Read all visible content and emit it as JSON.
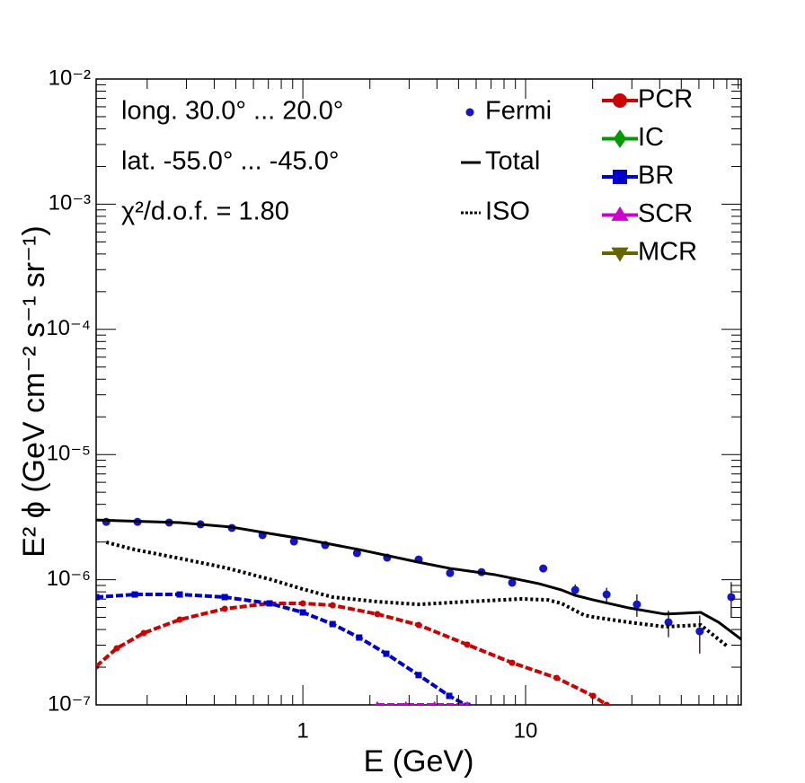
{
  "chart_data": {
    "type": "line",
    "log_x": true,
    "log_y": true,
    "xlabel": "E (GeV)",
    "ylabel": "E² ϕ (GeV cm⁻² s⁻¹ sr⁻¹)",
    "xlim": [
      0.118,
      92.9
    ],
    "ylim": [
      1e-07,
      0.01
    ],
    "xticks": [
      1,
      10
    ],
    "yticks": [
      {
        "value": 1e-07,
        "label": "10⁻⁷"
      },
      {
        "value": 1e-06,
        "label": "10⁻⁶"
      },
      {
        "value": 1e-05,
        "label": "10⁻⁵"
      },
      {
        "value": 0.0001,
        "label": "10⁻⁴"
      },
      {
        "value": 0.001,
        "label": "10⁻³"
      },
      {
        "value": 0.01,
        "label": "10⁻²"
      }
    ],
    "annotations": [
      "long. 30.0° ... 20.0°",
      "lat. -55.0° ... -45.0°",
      "χ²/d.o.f. = 1.80"
    ],
    "series": [
      {
        "name": "Fermi",
        "color": "#1414c8",
        "style": "points",
        "marker": "circle",
        "x": [
          0.131,
          0.181,
          0.251,
          0.347,
          0.48,
          0.659,
          0.912,
          1.26,
          1.75,
          2.39,
          3.31,
          4.58,
          6.34,
          8.7,
          12.0,
          16.7,
          23.1,
          31.6,
          43.8,
          60.5,
          83.8
        ],
        "values": [
          2.9e-06,
          2.9e-06,
          2.86e-06,
          2.77e-06,
          2.59e-06,
          2.27e-06,
          2.02e-06,
          1.89e-06,
          1.63e-06,
          1.5e-06,
          1.45e-06,
          1.13e-06,
          1.15e-06,
          9.46e-07,
          1.23e-06,
          8.28e-07,
          7.62e-07,
          6.35e-07,
          4.57e-07,
          3.87e-07,
          7.26e-07
        ],
        "errors": [
          5e-08,
          5e-08,
          5e-08,
          5e-08,
          5e-08,
          4e-08,
          4e-08,
          4e-08,
          3e-08,
          3e-08,
          4e-08,
          3e-08,
          4e-08,
          5e-08,
          8e-08,
          9e-08,
          1e-07,
          1.3e-07,
          1.1e-07,
          1.3e-07,
          2.3e-07
        ]
      },
      {
        "name": "Total",
        "color": "#000000",
        "style": "solid",
        "x": [
          0.118,
          0.28,
          0.48,
          0.709,
          1.0,
          1.79,
          3.31,
          4.58,
          7.22,
          11.5,
          14.5,
          16.7,
          20.1,
          29.1,
          42.2,
          61.1,
          73.6,
          92.9
        ],
        "values": [
          3e-06,
          2.86e-06,
          2.63e-06,
          2.34e-06,
          2.12e-06,
          1.74e-06,
          1.38e-06,
          1.23e-06,
          1.1e-06,
          9.29e-07,
          8.28e-07,
          7.5e-07,
          6.9e-07,
          5.95e-07,
          5.31e-07,
          5.48e-07,
          4.57e-07,
          3.34e-07
        ]
      },
      {
        "name": "ISO",
        "color": "#000000",
        "style": "dotted",
        "x": [
          0.131,
          0.176,
          0.28,
          0.446,
          0.709,
          1.0,
          1.36,
          2.16,
          3.31,
          5.47,
          9.55,
          12.6,
          14.5,
          18.3,
          20.1,
          29.1,
          42.2,
          61.1,
          80.8
        ],
        "values": [
          1.99e-06,
          1.74e-06,
          1.48e-06,
          1.25e-06,
          1.01e-06,
          8.41e-07,
          7.26e-07,
          6.68e-07,
          6.35e-07,
          6.68e-07,
          7.02e-07,
          6.9e-07,
          6.47e-07,
          5.21e-07,
          5.04e-07,
          4.57e-07,
          4.21e-07,
          4.35e-07,
          2.92e-07
        ]
      },
      {
        "name": "PCR",
        "color": "#cc0000",
        "style": "dashed",
        "marker": "circle",
        "x": [
          0.118,
          0.146,
          0.193,
          0.28,
          0.446,
          0.709,
          1.0,
          1.36,
          2.16,
          3.31,
          5.47,
          8.7,
          13.8,
          20.1,
          23.1
        ],
        "values": [
          2.03e-07,
          2.83e-07,
          3.75e-07,
          4.8e-07,
          5.86e-07,
          6.47e-07,
          6.47e-07,
          6.25e-07,
          5.31e-07,
          4.35e-07,
          3.03e-07,
          2.17e-07,
          1.64e-07,
          1.18e-07,
          1e-07
        ]
      },
      {
        "name": "IC",
        "color": "#009900",
        "style": "dashed",
        "marker": "diamond",
        "x": [],
        "values": []
      },
      {
        "name": "BR",
        "color": "#0000cc",
        "style": "dashed",
        "marker": "square",
        "x": [
          0.118,
          0.176,
          0.28,
          0.446,
          0.709,
          1.0,
          1.36,
          1.79,
          2.37,
          3.31,
          4.54,
          5.47
        ],
        "values": [
          7.26e-07,
          7.62e-07,
          7.62e-07,
          7.26e-07,
          6.47e-07,
          5.48e-07,
          4.42e-07,
          3.45e-07,
          2.56e-07,
          1.73e-07,
          1.18e-07,
          9.84e-08
        ]
      },
      {
        "name": "SCR",
        "color": "#cc00cc",
        "style": "dashed",
        "marker": "triangle-up",
        "x": [
          2.16,
          2.9,
          3.9,
          5.47
        ],
        "values": [
          1e-07,
          1e-07,
          1e-07,
          1e-07
        ]
      },
      {
        "name": "MCR",
        "color": "#666600",
        "style": "dashed",
        "marker": "triangle-down",
        "x": [],
        "values": []
      }
    ]
  }
}
